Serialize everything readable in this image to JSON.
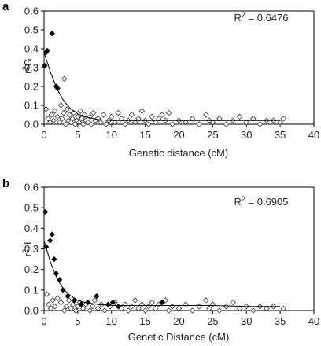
{
  "chart_data": [
    {
      "panel": "a",
      "type": "scatter",
      "xlabel": "Genetic distance (cM)",
      "ylabel": "r2G",
      "ylabel_main": "r",
      "ylabel_sup": "2",
      "ylabel_sub": "G",
      "annotation": {
        "prefix": "R",
        "sup": "2",
        "value": " = 0.6476"
      },
      "xlim": [
        0,
        40
      ],
      "ylim": [
        0,
        0.6
      ],
      "xticks": [
        0,
        5,
        10,
        15,
        20,
        25,
        30,
        35,
        40
      ],
      "yticks": [
        0.0,
        0.1,
        0.2,
        0.3,
        0.4,
        0.5,
        0.6
      ],
      "ytick_labels": [
        "0.0",
        "0.1",
        "0.2",
        "0.3",
        "0.4",
        "0.5",
        "0.6"
      ],
      "grid": false,
      "filled_points": [
        [
          0.1,
          0.31
        ],
        [
          0.3,
          0.38
        ],
        [
          0.5,
          0.39
        ],
        [
          1.2,
          0.48
        ],
        [
          1.8,
          0.2
        ],
        [
          2.0,
          0.19
        ]
      ],
      "open_points": [
        [
          0.3,
          0.08
        ],
        [
          0.6,
          0.03
        ],
        [
          0.9,
          0.01
        ],
        [
          1.1,
          0.05
        ],
        [
          1.4,
          0.02
        ],
        [
          1.6,
          0.07
        ],
        [
          2.0,
          0.04
        ],
        [
          2.3,
          0.01
        ],
        [
          2.5,
          0.1
        ],
        [
          2.7,
          0.03
        ],
        [
          2.9,
          0.06
        ],
        [
          3.0,
          0.24
        ],
        [
          3.2,
          0.0
        ],
        [
          3.4,
          0.08
        ],
        [
          3.6,
          0.02
        ],
        [
          3.8,
          0.05
        ],
        [
          4.0,
          0.01
        ],
        [
          4.2,
          0.03
        ],
        [
          4.4,
          0.06
        ],
        [
          4.6,
          0.0
        ],
        [
          4.8,
          0.02
        ],
        [
          5.0,
          0.04
        ],
        [
          5.2,
          0.01
        ],
        [
          5.4,
          0.07
        ],
        [
          5.6,
          0.03
        ],
        [
          5.8,
          0.0
        ],
        [
          6.0,
          0.05
        ],
        [
          6.2,
          0.02
        ],
        [
          6.5,
          0.01
        ],
        [
          6.8,
          0.04
        ],
        [
          7.0,
          0.0
        ],
        [
          7.3,
          0.06
        ],
        [
          7.6,
          0.02
        ],
        [
          8.0,
          0.03
        ],
        [
          8.4,
          0.01
        ],
        [
          8.8,
          0.05
        ],
        [
          9.2,
          0.0
        ],
        [
          9.6,
          0.02
        ],
        [
          10.0,
          0.04
        ],
        [
          10.5,
          0.01
        ],
        [
          11.0,
          0.06
        ],
        [
          11.5,
          0.03
        ],
        [
          12.0,
          0.0
        ],
        [
          12.5,
          0.02
        ],
        [
          13.0,
          0.05
        ],
        [
          13.5,
          0.01
        ],
        [
          14.0,
          0.03
        ],
        [
          14.5,
          0.07
        ],
        [
          15.0,
          0.02
        ],
        [
          15.5,
          0.0
        ],
        [
          16.0,
          0.04
        ],
        [
          16.5,
          0.01
        ],
        [
          17.0,
          0.03
        ],
        [
          17.5,
          0.05
        ],
        [
          18.0,
          0.02
        ],
        [
          18.5,
          0.06
        ],
        [
          19.0,
          0.0
        ],
        [
          20.0,
          0.02
        ],
        [
          21.0,
          0.01
        ],
        [
          22.0,
          0.03
        ],
        [
          23.0,
          0.0
        ],
        [
          24.0,
          0.05
        ],
        [
          24.5,
          0.02
        ],
        [
          25.0,
          0.01
        ],
        [
          26.0,
          0.03
        ],
        [
          27.0,
          0.0
        ],
        [
          28.0,
          0.02
        ],
        [
          29.0,
          0.04
        ],
        [
          30.0,
          0.01
        ],
        [
          31.0,
          0.03
        ],
        [
          32.0,
          0.0
        ],
        [
          33.0,
          0.02
        ],
        [
          34.0,
          0.02
        ],
        [
          35.0,
          0.01
        ],
        [
          35.5,
          0.03
        ]
      ],
      "trend_curve": [
        [
          0,
          0.38
        ],
        [
          1,
          0.27
        ],
        [
          2,
          0.18
        ],
        [
          3,
          0.12
        ],
        [
          4,
          0.08
        ],
        [
          5,
          0.055
        ],
        [
          6,
          0.04
        ],
        [
          8,
          0.025
        ],
        [
          10,
          0.02
        ],
        [
          15,
          0.02
        ],
        [
          20,
          0.02
        ],
        [
          25,
          0.02
        ],
        [
          30,
          0.02
        ],
        [
          35,
          0.02
        ]
      ]
    },
    {
      "panel": "b",
      "type": "scatter",
      "xlabel": "Genetic Distance (cM)",
      "ylabel": "r2H",
      "ylabel_main": "r",
      "ylabel_sup": "2",
      "ylabel_sub": "H",
      "annotation": {
        "prefix": "R",
        "sup": "2",
        "value": " = 0.6905"
      },
      "xlim": [
        0,
        40
      ],
      "ylim": [
        0,
        0.6
      ],
      "xticks": [
        0,
        5,
        10,
        15,
        20,
        25,
        30,
        35,
        40
      ],
      "yticks": [
        0.0,
        0.1,
        0.2,
        0.3,
        0.4,
        0.5,
        0.6
      ],
      "ytick_labels": [
        "0.0",
        "0.1",
        "0.2",
        "0.3",
        "0.4",
        "0.5",
        "0.6"
      ],
      "grid": false,
      "filled_points": [
        [
          0.2,
          0.48
        ],
        [
          0.3,
          0.31
        ],
        [
          0.9,
          0.34
        ],
        [
          1.2,
          0.37
        ],
        [
          1.5,
          0.25
        ],
        [
          1.8,
          0.18
        ],
        [
          2.3,
          0.15
        ],
        [
          2.8,
          0.1
        ],
        [
          3.5,
          0.07
        ],
        [
          4.5,
          0.05
        ],
        [
          5.5,
          0.03
        ],
        [
          6.5,
          0.04
        ],
        [
          7.8,
          0.07
        ],
        [
          9.5,
          0.03
        ],
        [
          10.2,
          0.04
        ],
        [
          11.0,
          0.02
        ],
        [
          17.5,
          0.04
        ]
      ],
      "open_points": [
        [
          0.4,
          0.08
        ],
        [
          0.7,
          0.03
        ],
        [
          1.0,
          0.01
        ],
        [
          1.3,
          0.05
        ],
        [
          1.6,
          0.02
        ],
        [
          2.0,
          0.06
        ],
        [
          2.5,
          0.04
        ],
        [
          3.0,
          0.0
        ],
        [
          3.3,
          0.02
        ],
        [
          3.7,
          0.05
        ],
        [
          4.0,
          0.01
        ],
        [
          4.3,
          0.03
        ],
        [
          4.7,
          0.0
        ],
        [
          5.0,
          0.02
        ],
        [
          5.3,
          0.04
        ],
        [
          5.8,
          0.01
        ],
        [
          6.2,
          0.03
        ],
        [
          6.8,
          0.0
        ],
        [
          7.2,
          0.02
        ],
        [
          7.5,
          0.05
        ],
        [
          8.0,
          0.01
        ],
        [
          8.5,
          0.03
        ],
        [
          9.0,
          0.0
        ],
        [
          9.8,
          0.02
        ],
        [
          10.5,
          0.04
        ],
        [
          11.5,
          0.01
        ],
        [
          12.0,
          0.03
        ],
        [
          12.5,
          0.0
        ],
        [
          13.0,
          0.02
        ],
        [
          13.5,
          0.05
        ],
        [
          14.0,
          0.01
        ],
        [
          14.5,
          0.03
        ],
        [
          15.0,
          0.0
        ],
        [
          15.5,
          0.02
        ],
        [
          16.0,
          0.04
        ],
        [
          16.5,
          0.01
        ],
        [
          17.0,
          0.03
        ],
        [
          18.0,
          0.05
        ],
        [
          18.5,
          0.0
        ],
        [
          19.0,
          0.02
        ],
        [
          20.0,
          0.01
        ],
        [
          21.0,
          0.03
        ],
        [
          22.0,
          0.0
        ],
        [
          23.0,
          0.02
        ],
        [
          24.0,
          0.05
        ],
        [
          24.5,
          0.01
        ],
        [
          25.0,
          0.03
        ],
        [
          26.0,
          0.0
        ],
        [
          27.0,
          0.02
        ],
        [
          28.0,
          0.04
        ],
        [
          29.0,
          0.01
        ],
        [
          30.0,
          0.02
        ],
        [
          31.0,
          0.0
        ],
        [
          32.0,
          0.02
        ],
        [
          33.0,
          0.01
        ],
        [
          34.0,
          0.02
        ],
        [
          35.5,
          0.01
        ]
      ],
      "trend_curve": [
        [
          0,
          0.34
        ],
        [
          1,
          0.23
        ],
        [
          2,
          0.15
        ],
        [
          3,
          0.1
        ],
        [
          4,
          0.07
        ],
        [
          5,
          0.05
        ],
        [
          6,
          0.04
        ],
        [
          8,
          0.03
        ],
        [
          10,
          0.025
        ],
        [
          15,
          0.025
        ],
        [
          20,
          0.025
        ],
        [
          25,
          0.025
        ],
        [
          30,
          0.02
        ],
        [
          35,
          0.02
        ]
      ]
    }
  ]
}
